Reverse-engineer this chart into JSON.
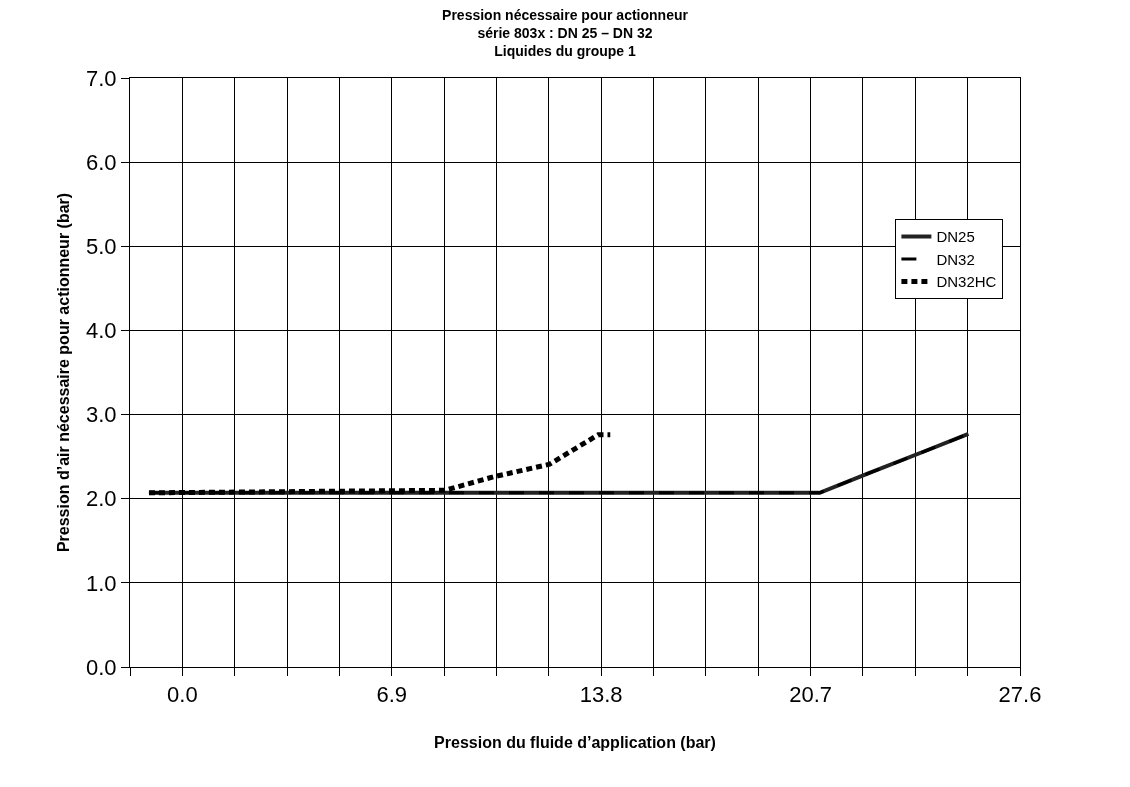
{
  "chart_data": {
    "type": "line",
    "title": "Pression nécessaire pour actionneur\nsérie 803x : DN 25 – DN 32\nLiquides du groupe 1",
    "xlabel": "Pression du fluide d’application (bar)",
    "ylabel": "Pression d’air nécessaire pour actionneur (bar)",
    "xlim": [
      -1.725,
      27.6
    ],
    "xticks": [
      {
        "value": -1.725,
        "label": null
      },
      {
        "value": 0,
        "label": "0.0"
      },
      {
        "value": 1.725,
        "label": null
      },
      {
        "value": 3.45,
        "label": null
      },
      {
        "value": 5.175,
        "label": null
      },
      6.9,
      {
        "value": 8.625,
        "label": null
      },
      {
        "value": 10.35,
        "label": null
      },
      {
        "value": 12.075,
        "label": null
      },
      13.8,
      {
        "value": 15.525,
        "label": null
      },
      {
        "value": 17.25,
        "label": null
      },
      {
        "value": 18.975,
        "label": null
      },
      20.7,
      {
        "value": 22.425,
        "label": null
      },
      {
        "value": 24.15,
        "label": null
      },
      {
        "value": 25.875,
        "label": null
      },
      27.6
    ],
    "ylim": [
      0,
      7
    ],
    "yticks": [
      {
        "value": 0,
        "label": "0.0"
      },
      {
        "value": 1,
        "label": "1.0"
      },
      {
        "value": 2,
        "label": "2.0"
      },
      {
        "value": 3,
        "label": "3.0"
      },
      {
        "value": 4,
        "label": "4.0"
      },
      {
        "value": 5,
        "label": "5.0"
      },
      {
        "value": 6,
        "label": "6.0"
      },
      {
        "value": 7,
        "label": "7.0"
      }
    ],
    "grid": true,
    "legend": "top right",
    "marker": "none",
    "series": [
      {
        "name": "DN25",
        "color": "#222222",
        "line_style": "solid",
        "x": [
          -1.1,
          21.0,
          22.6,
          24.5,
          25.9
        ],
        "values": [
          2.07,
          2.07,
          2.3,
          2.57,
          2.77
        ]
      },
      {
        "name": "DN32",
        "color": "#000000",
        "line_style": "dashed",
        "x": [
          -1.1,
          21.0,
          22.6,
          24.5,
          25.9
        ],
        "values": [
          2.07,
          2.07,
          2.3,
          2.57,
          2.77
        ]
      },
      {
        "name": "DN32HC",
        "color": "#000000",
        "line_style": "dotted",
        "x": [
          -1.1,
          8.65,
          10.25,
          12.1,
          13.7,
          14.1
        ],
        "values": [
          2.07,
          2.1,
          2.26,
          2.41,
          2.76,
          2.76
        ]
      }
    ]
  }
}
